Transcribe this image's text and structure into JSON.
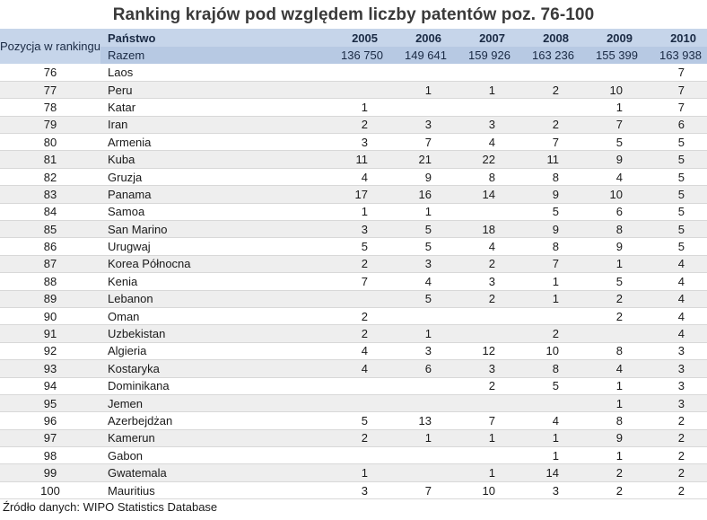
{
  "chart_data": {
    "type": "table",
    "title": "Ranking krajów pod względem liczby patentów poz. 76-100",
    "columns": {
      "rank": "Pozycja w rankingu",
      "country": "Państwo",
      "years": [
        "2005",
        "2006",
        "2007",
        "2008",
        "2009",
        "2010"
      ]
    },
    "total": {
      "label": "Razem",
      "values": [
        "136 750",
        "149 641",
        "159 926",
        "163 236",
        "155 399",
        "163 938"
      ]
    },
    "rows": [
      {
        "rank": "76",
        "country": "Laos",
        "values": [
          "",
          "",
          "",
          "",
          "",
          "7"
        ]
      },
      {
        "rank": "77",
        "country": "Peru",
        "values": [
          "",
          "1",
          "1",
          "2",
          "10",
          "7"
        ]
      },
      {
        "rank": "78",
        "country": "Katar",
        "values": [
          "1",
          "",
          "",
          "",
          "1",
          "7"
        ]
      },
      {
        "rank": "79",
        "country": "Iran",
        "values": [
          "2",
          "3",
          "3",
          "2",
          "7",
          "6"
        ]
      },
      {
        "rank": "80",
        "country": "Armenia",
        "values": [
          "3",
          "7",
          "4",
          "7",
          "5",
          "5"
        ]
      },
      {
        "rank": "81",
        "country": "Kuba",
        "values": [
          "11",
          "21",
          "22",
          "11",
          "9",
          "5"
        ]
      },
      {
        "rank": "82",
        "country": "Gruzja",
        "values": [
          "4",
          "9",
          "8",
          "8",
          "4",
          "5"
        ]
      },
      {
        "rank": "83",
        "country": "Panama",
        "values": [
          "17",
          "16",
          "14",
          "9",
          "10",
          "5"
        ]
      },
      {
        "rank": "84",
        "country": "Samoa",
        "values": [
          "1",
          "1",
          "",
          "5",
          "6",
          "5"
        ]
      },
      {
        "rank": "85",
        "country": "San Marino",
        "values": [
          "3",
          "5",
          "18",
          "9",
          "8",
          "5"
        ]
      },
      {
        "rank": "86",
        "country": "Urugwaj",
        "values": [
          "5",
          "5",
          "4",
          "8",
          "9",
          "5"
        ]
      },
      {
        "rank": "87",
        "country": "Korea Północna",
        "values": [
          "2",
          "3",
          "2",
          "7",
          "1",
          "4"
        ]
      },
      {
        "rank": "88",
        "country": "Kenia",
        "values": [
          "7",
          "4",
          "3",
          "1",
          "5",
          "4"
        ]
      },
      {
        "rank": "89",
        "country": "Lebanon",
        "values": [
          "",
          "5",
          "2",
          "1",
          "2",
          "4"
        ]
      },
      {
        "rank": "90",
        "country": "Oman",
        "values": [
          "2",
          "",
          "",
          "",
          "2",
          "4"
        ]
      },
      {
        "rank": "91",
        "country": "Uzbekistan",
        "values": [
          "2",
          "1",
          "",
          "2",
          "",
          "4"
        ]
      },
      {
        "rank": "92",
        "country": "Algieria",
        "values": [
          "4",
          "3",
          "12",
          "10",
          "8",
          "3"
        ]
      },
      {
        "rank": "93",
        "country": "Kostaryka",
        "values": [
          "4",
          "6",
          "3",
          "8",
          "4",
          "3"
        ]
      },
      {
        "rank": "94",
        "country": "Dominikana",
        "values": [
          "",
          "",
          "2",
          "5",
          "1",
          "3"
        ]
      },
      {
        "rank": "95",
        "country": "Jemen",
        "values": [
          "",
          "",
          "",
          "",
          "1",
          "3"
        ]
      },
      {
        "rank": "96",
        "country": "Azerbejdżan",
        "values": [
          "5",
          "13",
          "7",
          "4",
          "8",
          "2"
        ]
      },
      {
        "rank": "97",
        "country": "Kamerun",
        "values": [
          "2",
          "1",
          "1",
          "1",
          "9",
          "2"
        ]
      },
      {
        "rank": "98",
        "country": "Gabon",
        "values": [
          "",
          "",
          "",
          "1",
          "1",
          "2"
        ]
      },
      {
        "rank": "99",
        "country": "Gwatemala",
        "values": [
          "1",
          "",
          "1",
          "14",
          "2",
          "2"
        ]
      },
      {
        "rank": "100",
        "country": "Mauritius",
        "values": [
          "3",
          "7",
          "10",
          "3",
          "2",
          "2"
        ]
      }
    ],
    "source": "Źródło danych: WIPO Statistics Database"
  }
}
